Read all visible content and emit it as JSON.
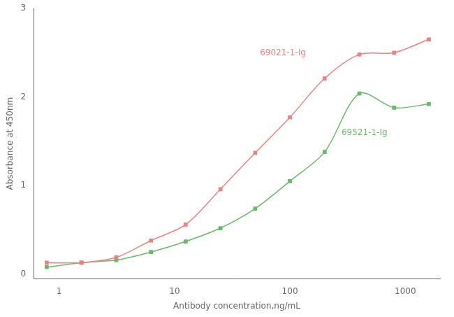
{
  "chart_data": {
    "type": "line",
    "title": "",
    "xlabel": "Antibody concentration,ng/mL",
    "ylabel": "Absorbance at 450nm",
    "log": "x",
    "grid": false,
    "xlim": [
      0.6,
      2000
    ],
    "xticks": [
      1,
      10,
      100,
      1000
    ],
    "ylim": [
      -0.05,
      3.0
    ],
    "yticks": [
      0,
      1,
      2,
      3
    ],
    "x": [
      0.78,
      1.56,
      3.125,
      6.25,
      12.5,
      25,
      50,
      100,
      200,
      400,
      800,
      1600
    ],
    "series": [
      {
        "color": "#f08080",
        "marker": "square",
        "line_style": "solid",
        "values": [
          0.13,
          0.13,
          0.19,
          0.38,
          0.56,
          0.96,
          1.37,
          1.77,
          2.21,
          2.48,
          2.5,
          2.65
        ]
      },
      {
        "color": "#66bb66",
        "marker": "square",
        "line_style": "solid",
        "values": [
          0.08,
          0.13,
          0.16,
          0.25,
          0.37,
          0.52,
          0.74,
          1.05,
          1.38,
          2.04,
          1.88,
          1.92
        ]
      }
    ],
    "annotations": [
      {
        "text": "69021-1-Ig",
        "x": 55,
        "y": 2.45,
        "color": "#f08080"
      },
      {
        "text": "69521-1-Ig",
        "x": 280,
        "y": 1.55,
        "color": "#66bb66"
      }
    ]
  }
}
